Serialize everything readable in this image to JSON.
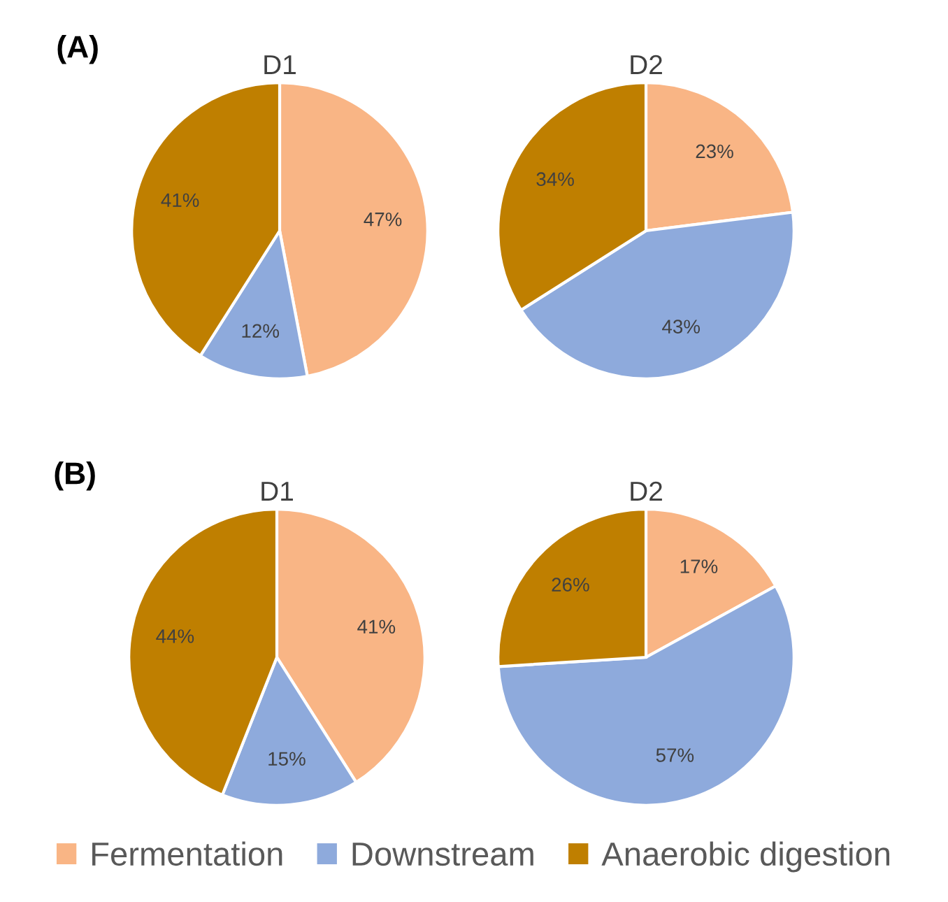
{
  "chart_data": [
    {
      "type": "pie",
      "title": "D1",
      "annotations": [
        "(A)"
      ],
      "categories": [
        "Fermentation",
        "Downstream",
        "Anaerobic digestion"
      ],
      "values": [
        47,
        12,
        41
      ],
      "value_labels": [
        "47%",
        "12%",
        "41%"
      ],
      "colors": [
        "#f9b585",
        "#8eaadc",
        "#bf7f00"
      ],
      "legend": "bottom"
    },
    {
      "type": "pie",
      "title": "D2",
      "values": [
        23,
        43,
        34
      ],
      "value_labels": [
        "23%",
        "43%",
        "34%"
      ],
      "colors": [
        "#f9b585",
        "#8eaadc",
        "#bf7f00"
      ]
    },
    {
      "type": "pie",
      "title": "D1",
      "annotations": [
        "(B)"
      ],
      "values": [
        41,
        15,
        44
      ],
      "value_labels": [
        "41%",
        "15%",
        "44%"
      ],
      "colors": [
        "#f9b585",
        "#8eaadc",
        "#bf7f00"
      ]
    },
    {
      "type": "pie",
      "title": "D2",
      "values": [
        17,
        57,
        26
      ],
      "value_labels": [
        "17%",
        "57%",
        "26%"
      ],
      "colors": [
        "#f9b585",
        "#8eaadc",
        "#bf7f00"
      ]
    }
  ]
}
